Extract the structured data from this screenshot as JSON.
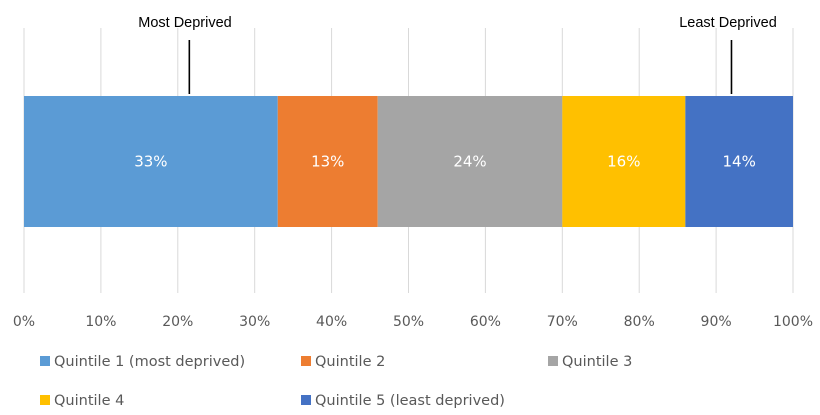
{
  "chart_data": {
    "type": "bar",
    "orientation": "horizontal",
    "stacked": true,
    "percent_scale": true,
    "series": [
      {
        "name": "Quintile 1 (most deprived)",
        "value": 33,
        "label": "33%",
        "color": "#5B9BD5"
      },
      {
        "name": "Quintile 2",
        "value": 13,
        "label": "13%",
        "color": "#ED7D31"
      },
      {
        "name": "Quintile 3",
        "value": 24,
        "label": "24%",
        "color": "#A5A5A5"
      },
      {
        "name": "Quintile 4",
        "value": 16,
        "label": "16%",
        "color": "#FFC000"
      },
      {
        "name": "Quintile 5 (least deprived)",
        "value": 14,
        "label": "14%",
        "color": "#4472C4"
      }
    ],
    "xlim": [
      0,
      100
    ],
    "x_ticks": [
      "0%",
      "10%",
      "20%",
      "30%",
      "40%",
      "50%",
      "60%",
      "70%",
      "80%",
      "90%",
      "100%"
    ],
    "grid": true,
    "legend_position": "bottom",
    "annotations": [
      {
        "text": "Most Deprived",
        "x": 21.5
      },
      {
        "text": "Least Deprived",
        "x": 92
      }
    ]
  }
}
